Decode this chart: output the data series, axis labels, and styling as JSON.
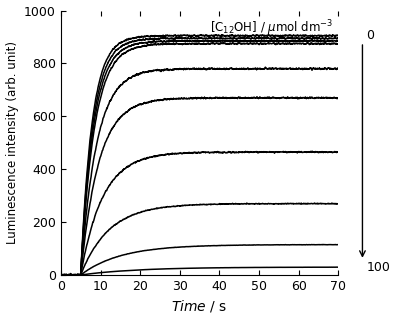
{
  "xlabel": "Time / s",
  "ylabel": "Luminescence intensity (arb. unit)",
  "xmin": 0,
  "xmax": 70,
  "ymin": 0,
  "ymax": 1000,
  "xticks": [
    0,
    10,
    20,
    30,
    40,
    50,
    60,
    70
  ],
  "yticks": [
    0,
    200,
    400,
    600,
    800,
    1000
  ],
  "t_start": 5.0,
  "plateau_values": [
    905,
    895,
    885,
    875,
    780,
    670,
    465,
    270,
    115,
    30
  ],
  "rise_rates": [
    0.35,
    0.33,
    0.31,
    0.29,
    0.25,
    0.22,
    0.18,
    0.14,
    0.1,
    0.07
  ],
  "noise_scales": [
    0.003,
    0.003,
    0.003,
    0.003,
    0.004,
    0.004,
    0.005,
    0.005,
    0.005,
    0.005
  ],
  "background_color": "#ffffff",
  "line_color": "#000000",
  "line_width": 1.1
}
